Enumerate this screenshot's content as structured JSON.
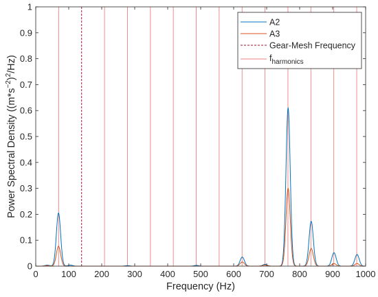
{
  "chart_data": {
    "type": "line",
    "xlabel": "Frequency (Hz)",
    "ylabel": "Power Spectral Density ((m*s^{-2})^{2}/Hz)",
    "xlim": [
      0,
      1000
    ],
    "ylim": [
      0,
      1
    ],
    "xticks": [
      0,
      100,
      200,
      300,
      400,
      500,
      600,
      700,
      800,
      900,
      1000
    ],
    "yticks": [
      0,
      0.1,
      0.2,
      0.3,
      0.4,
      0.5,
      0.6,
      0.7,
      0.8,
      0.9,
      1
    ],
    "grid": false,
    "legend_position": "top-right",
    "series": [
      {
        "name": "A2",
        "color": "#0072BD",
        "peaks": [
          {
            "x": 35,
            "y": 0.004
          },
          {
            "x": 69,
            "y": 0.205
          },
          {
            "x": 105,
            "y": 0.004
          },
          {
            "x": 278,
            "y": 0.002
          },
          {
            "x": 487,
            "y": 0.003
          },
          {
            "x": 626,
            "y": 0.035
          },
          {
            "x": 695,
            "y": 0.007
          },
          {
            "x": 765,
            "y": 0.61
          },
          {
            "x": 835,
            "y": 0.173
          },
          {
            "x": 904,
            "y": 0.052
          },
          {
            "x": 974,
            "y": 0.045
          }
        ]
      },
      {
        "name": "A3",
        "color": "#D95319",
        "peaks": [
          {
            "x": 35,
            "y": 0.002
          },
          {
            "x": 69,
            "y": 0.077
          },
          {
            "x": 626,
            "y": 0.016
          },
          {
            "x": 695,
            "y": 0.004
          },
          {
            "x": 765,
            "y": 0.3
          },
          {
            "x": 835,
            "y": 0.068
          },
          {
            "x": 904,
            "y": 0.01
          },
          {
            "x": 974,
            "y": 0.01
          }
        ]
      }
    ],
    "gear_mesh_frequency": {
      "name": "Gear-Mesh Frequency",
      "x": 139,
      "color": "#A2142F",
      "style": "dashed"
    },
    "harmonics": {
      "name_main": "f",
      "name_sub": "harmonics",
      "color": "#F08080",
      "x": [
        69.5,
        208.5,
        278,
        347.5,
        417,
        486.5,
        556,
        625.5,
        695,
        764.5,
        834,
        903.5,
        973
      ]
    }
  }
}
